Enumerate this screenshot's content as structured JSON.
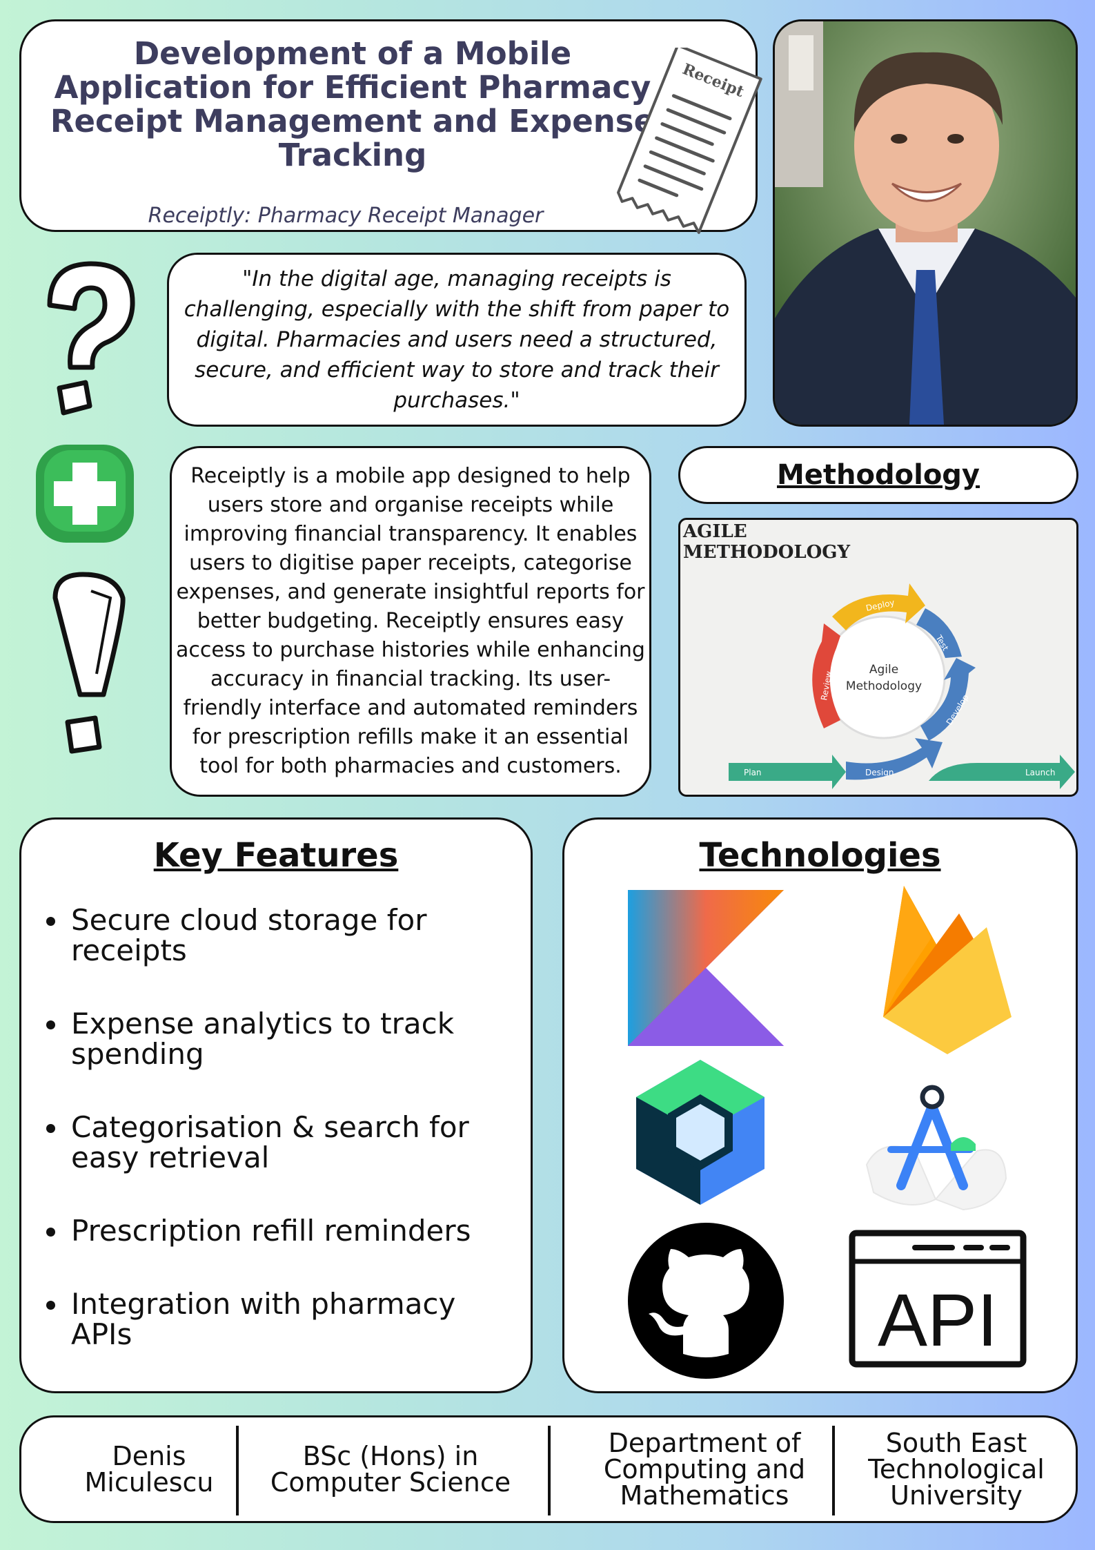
{
  "title": {
    "heading": "Development of a Mobile Application for Efficient Pharmacy Receipt Management and Expense Tracking",
    "subtitle": "Receiptly: Pharmacy Receipt Manager",
    "receipt_label": "Receipt"
  },
  "photo": {
    "icon": "student-portrait"
  },
  "quote": {
    "text": "\"In the digital age, managing receipts is challenging, especially with the shift from paper to digital. Pharmacies and users need a structured, secure, and efficient way to store and track their purchases.\""
  },
  "side_icons": [
    "question-mark-icon",
    "pharmacy-cross-icon",
    "exclamation-mark-icon"
  ],
  "description": {
    "text": "Receiptly is a mobile app designed to help users store and organise receipts while improving financial transparency. It enables users to digitise paper receipts, categorise expenses, and generate insightful reports for better budgeting. Receiptly ensures easy access to purchase histories while enhancing accuracy in financial tracking. Its user-friendly interface and automated reminders for prescription refills make it an essential tool for both pharmacies and customers."
  },
  "methodology": {
    "heading": "Methodology",
    "diagram_title": "AGILE METHODOLOGY",
    "center_label": "Agile Methodology",
    "stages": {
      "deploy": "Deploy",
      "test": "Test",
      "develop": "Develop",
      "review": "Review",
      "plan": "Plan",
      "design": "Design",
      "launch": "Launch"
    },
    "colors": {
      "deploy": "#f2b61d",
      "test": "#4a7fc0",
      "develop": "#4a7fc0",
      "review": "#e0483a",
      "green": "#3aaa87"
    }
  },
  "features": {
    "heading": "Key Features",
    "items": [
      "Secure cloud storage for receipts",
      "Expense analytics to track spending",
      "Categorisation & search for easy retrieval",
      "Prescription refill reminders",
      "Integration with pharmacy APIs"
    ]
  },
  "technologies": {
    "heading": "Technologies",
    "logos": [
      "kotlin-logo",
      "firebase-logo",
      "jetpack-compose-logo",
      "android-studio-logo",
      "github-logo",
      "api-icon"
    ],
    "api_label": "API"
  },
  "footer": {
    "name": "Denis Miculescu",
    "degree": "BSc (Hons) in Computer Science",
    "department": "Department of Computing and Mathematics",
    "university": "South East Technological University"
  }
}
